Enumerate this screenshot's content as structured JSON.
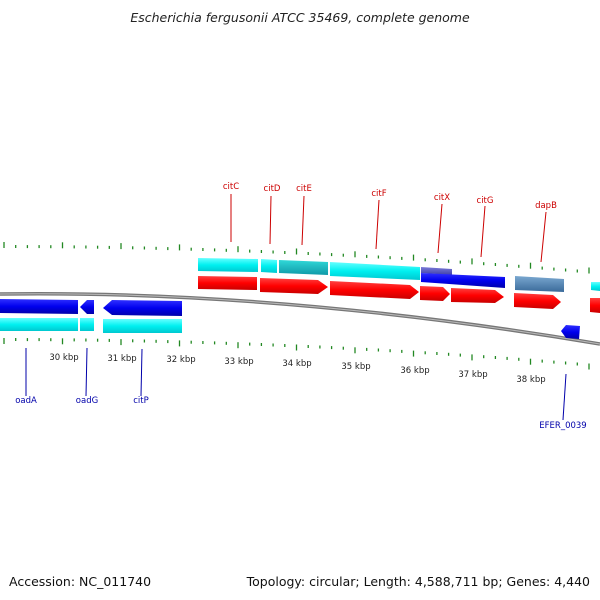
{
  "title": "Escherichia fergusonii ATCC 35469, complete genome",
  "footer": {
    "accession": "Accession: NC_011740",
    "summary": "Topology: circular; Length: 4,588,711 bp; Genes: 4,440"
  },
  "scale_labels": [
    "30 kbp",
    "31 kbp",
    "32 kbp",
    "33 kbp",
    "34 kbp",
    "35 kbp",
    "36 kbp",
    "37 kbp",
    "38 kbp"
  ],
  "genes_forward": [
    "citC",
    "citD",
    "citE",
    "citF",
    "citX",
    "citG",
    "dapB"
  ],
  "genes_reverse": [
    "oadA",
    "oadG",
    "citP",
    "EFER_0039"
  ],
  "colors": {
    "forward_label": "#cc0000",
    "reverse_label": "#0000aa",
    "cds": "#ff0000",
    "gene_forward": "#00ffff",
    "gene_reverse": "#0000ee",
    "tick": "#228822",
    "backbone": "#888888"
  }
}
